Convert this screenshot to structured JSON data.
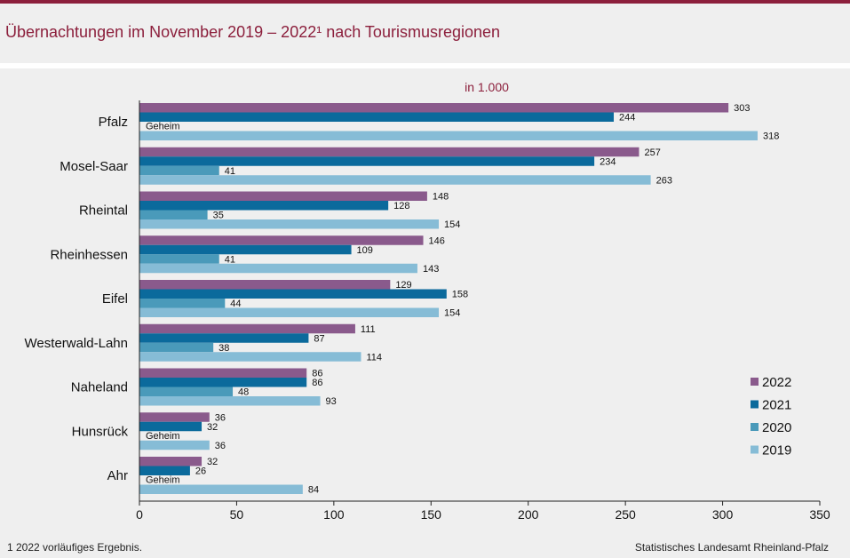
{
  "header": {
    "title": "Übernachtungen im November 2019 – 2022¹ nach Tourismusregionen"
  },
  "footer": {
    "footnote": "1 2022 vorläufiges  Ergebnis.",
    "source": "Statistisches Landesamt Rheinland-Pfalz"
  },
  "colors": {
    "2022": "#8a5a8c",
    "2021": "#0b6a9c",
    "2020": "#4a9aba",
    "2019": "#86bcd6",
    "title": "#8c1f3c"
  },
  "chart_data": {
    "type": "bar",
    "orientation": "horizontal",
    "subtitle": "in 1.000",
    "categories": [
      "Pfalz",
      "Mosel-Saar",
      "Rheintal",
      "Rheinhessen",
      "Eifel",
      "Westerwald-Lahn",
      "Naheland",
      "Hunsrück",
      "Ahr"
    ],
    "series": [
      {
        "name": "2022",
        "values": [
          303,
          257,
          148,
          146,
          129,
          111,
          86,
          36,
          32
        ]
      },
      {
        "name": "2021",
        "values": [
          244,
          234,
          128,
          109,
          158,
          87,
          86,
          32,
          26
        ]
      },
      {
        "name": "2020",
        "values": [
          null,
          41,
          35,
          41,
          44,
          38,
          48,
          null,
          null
        ]
      },
      {
        "name": "2019",
        "values": [
          318,
          263,
          154,
          143,
          154,
          114,
          93,
          36,
          84
        ]
      }
    ],
    "missing_label": "Geheim",
    "xlim": [
      0,
      350
    ],
    "xticks": [
      0,
      50,
      100,
      150,
      200,
      250,
      300,
      350
    ],
    "xlabel": "",
    "ylabel": "",
    "grid": false,
    "legend_position": "right",
    "legend_order": [
      "2022",
      "2021",
      "2020",
      "2019"
    ]
  }
}
